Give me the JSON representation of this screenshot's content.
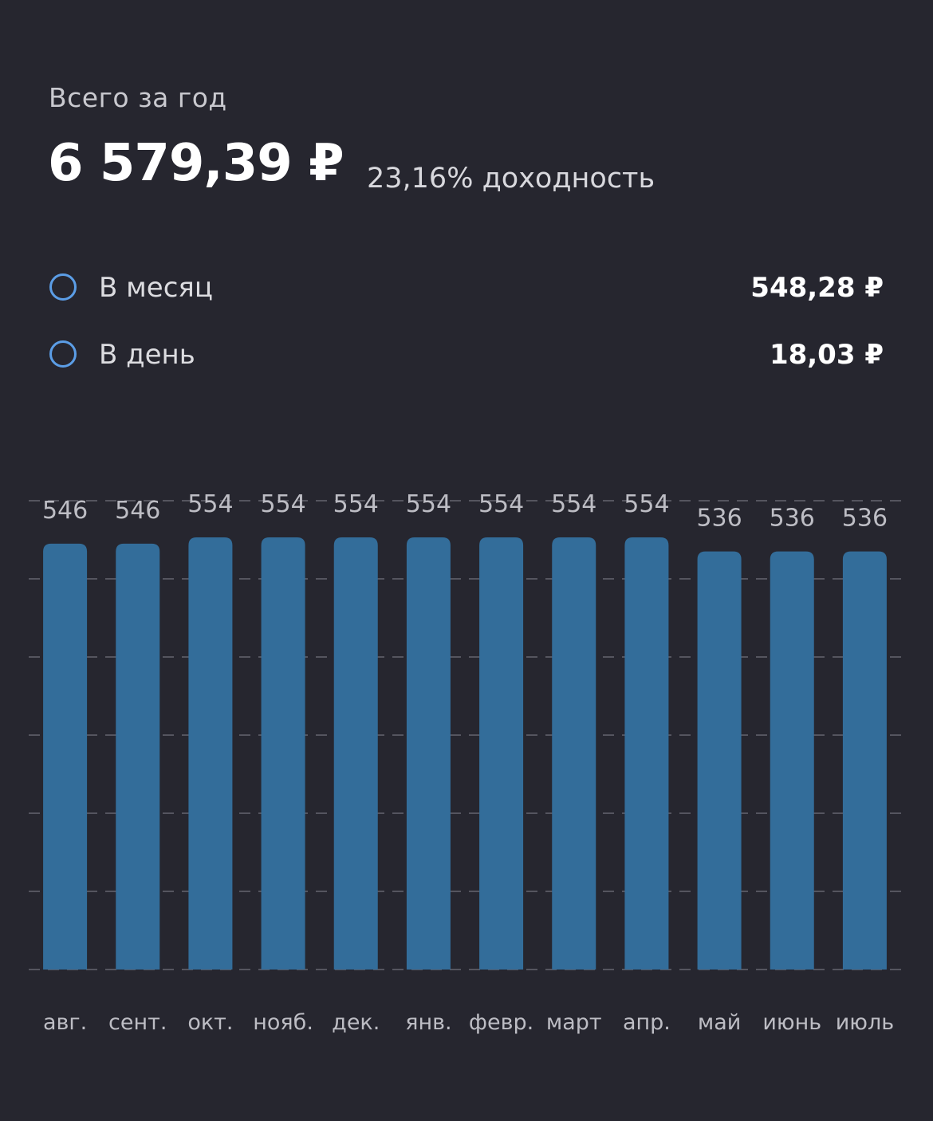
{
  "header": {
    "subtitle": "Всего за год",
    "total": "6 579,39 ₽",
    "yield": "23,16% доходность"
  },
  "stats": [
    {
      "label": "В месяц",
      "value": "548,28 ₽",
      "icon": "circle-outline-icon"
    },
    {
      "label": "В день",
      "value": "18,03 ₽",
      "icon": "circle-outline-icon"
    }
  ],
  "colors": {
    "background": "#26262f",
    "bar": "#336d9a",
    "accent": "#5b9de6",
    "grid": "#55555f",
    "label": "#bdbdc4"
  },
  "chart_data": {
    "type": "bar",
    "categories": [
      "авг.",
      "сент.",
      "окт.",
      "нояб.",
      "дек.",
      "янв.",
      "февр.",
      "март",
      "апр.",
      "май",
      "июнь",
      "июль"
    ],
    "values": [
      546,
      546,
      554,
      554,
      554,
      554,
      554,
      554,
      554,
      536,
      536,
      536
    ],
    "data_labels": [
      "546",
      "546",
      "554",
      "554",
      "554",
      "554",
      "554",
      "554",
      "554",
      "536",
      "536",
      "536"
    ],
    "ylim": [
      0,
      554
    ],
    "grid": true,
    "title": "",
    "xlabel": "",
    "ylabel": ""
  }
}
